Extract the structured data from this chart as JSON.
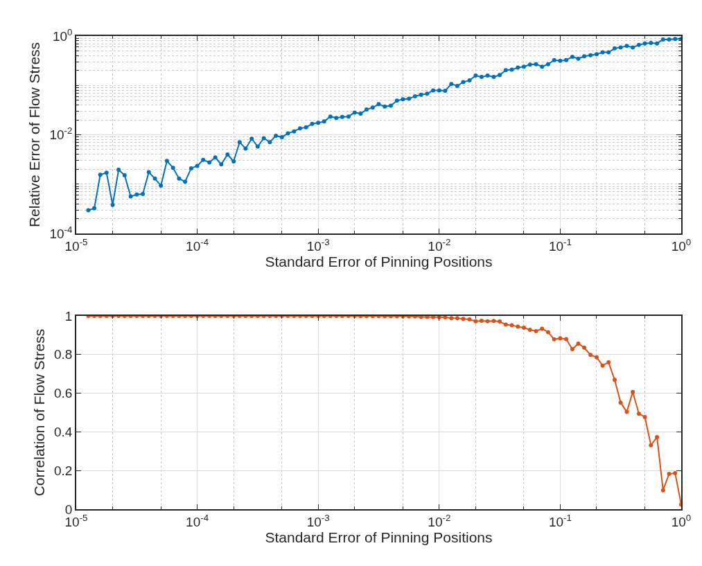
{
  "chart_data": [
    {
      "type": "line",
      "xlabel": "Standard Error of Pinning Positions",
      "ylabel": "Relative Error of Flow Stress",
      "log": "xy",
      "grid": true,
      "marker": "circle",
      "line_style": "solid",
      "xlim": [
        1e-05,
        1
      ],
      "ylim": [
        0.0001,
        1
      ],
      "xticks": [
        {
          "value": 1e-05,
          "label": "10$^{-5}$"
        },
        {
          "value": 0.0001,
          "label": "10$^{-4}$"
        },
        {
          "value": 0.001,
          "label": "10$^{-3}$"
        },
        {
          "value": 0.01,
          "label": "10$^{-2}$"
        },
        {
          "value": 0.1,
          "label": "10$^{-1}$"
        },
        {
          "value": 1,
          "label": "10$^{0}$"
        }
      ],
      "yticks": [
        {
          "value": 0.0001,
          "label": "10$^{-4}$"
        },
        {
          "value": 0.01,
          "label": "10$^{-2}$"
        },
        {
          "value": 1,
          "label": "10$^{0}$"
        }
      ],
      "series": [
        {
          "color": "#0072bd",
          "x": [
            1.26e-05,
            1.41e-05,
            1.58e-05,
            1.78e-05,
            2e-05,
            2.24e-05,
            2.51e-05,
            2.82e-05,
            3.16e-05,
            3.55e-05,
            3.98e-05,
            4.47e-05,
            5.01e-05,
            5.62e-05,
            6.31e-05,
            7.08e-05,
            7.94e-05,
            8.91e-05,
            0.0001,
            0.000112,
            0.000126,
            0.000141,
            0.000158,
            0.000178,
            0.0002,
            0.000224,
            0.000251,
            0.000282,
            0.000316,
            0.000355,
            0.000398,
            0.000447,
            0.000501,
            0.000562,
            0.000631,
            0.000708,
            0.000794,
            0.000891,
            0.001,
            0.00112,
            0.00126,
            0.00141,
            0.00158,
            0.00178,
            0.002,
            0.00224,
            0.00251,
            0.00282,
            0.00316,
            0.00355,
            0.00398,
            0.00447,
            0.00501,
            0.00562,
            0.00631,
            0.00708,
            0.00794,
            0.00891,
            0.01,
            0.0112,
            0.0126,
            0.0141,
            0.0158,
            0.0178,
            0.02,
            0.0224,
            0.0251,
            0.0282,
            0.0316,
            0.0355,
            0.0398,
            0.0447,
            0.0501,
            0.0562,
            0.0631,
            0.0708,
            0.0794,
            0.0891,
            0.1,
            0.112,
            0.126,
            0.141,
            0.158,
            0.178,
            0.2,
            0.224,
            0.251,
            0.282,
            0.316,
            0.355,
            0.398,
            0.447,
            0.501,
            0.562,
            0.631,
            0.708,
            0.794,
            0.891,
            1
          ],
          "values": [
            0.000295,
            0.000324,
            0.00155,
            0.0017,
            0.00038,
            0.00195,
            0.00151,
            0.000562,
            0.000617,
            0.000631,
            0.00174,
            0.00129,
            0.000933,
            0.00295,
            0.00214,
            0.00129,
            0.00112,
            0.00209,
            0.00234,
            0.00309,
            0.00275,
            0.00347,
            0.00251,
            0.00398,
            0.00288,
            0.00708,
            0.00525,
            0.00832,
            0.00575,
            0.00851,
            0.00708,
            0.00955,
            0.00891,
            0.0107,
            0.0117,
            0.0135,
            0.0141,
            0.0166,
            0.0174,
            0.0186,
            0.0234,
            0.0219,
            0.0229,
            0.0234,
            0.0282,
            0.0269,
            0.0324,
            0.0355,
            0.0417,
            0.0372,
            0.0389,
            0.049,
            0.0525,
            0.0537,
            0.0603,
            0.0646,
            0.0676,
            0.0794,
            0.0794,
            0.0776,
            0.107,
            0.0977,
            0.117,
            0.126,
            0.158,
            0.148,
            0.158,
            0.148,
            0.162,
            0.204,
            0.209,
            0.229,
            0.24,
            0.263,
            0.269,
            0.24,
            0.269,
            0.324,
            0.316,
            0.324,
            0.38,
            0.347,
            0.389,
            0.407,
            0.427,
            0.468,
            0.468,
            0.562,
            0.589,
            0.631,
            0.589,
            0.661,
            0.708,
            0.724,
            0.708,
            0.851,
            0.851,
            0.871,
            0.871
          ]
        }
      ]
    },
    {
      "type": "line",
      "xlabel": "Standard Error of Pinning Positions",
      "ylabel": "Correlation of Flow Stress",
      "log": "x",
      "grid": true,
      "marker": "circle",
      "line_style": "solid",
      "xlim": [
        1e-05,
        1
      ],
      "ylim": [
        0,
        1
      ],
      "xticks": [
        {
          "value": 1e-05,
          "label": "10$^{-5}$"
        },
        {
          "value": 0.0001,
          "label": "10$^{-4}$"
        },
        {
          "value": 0.001,
          "label": "10$^{-3}$"
        },
        {
          "value": 0.01,
          "label": "10$^{-2}$"
        },
        {
          "value": 0.1,
          "label": "10$^{-1}$"
        },
        {
          "value": 1,
          "label": "10$^{0}$"
        }
      ],
      "yticks": [
        0,
        0.2,
        0.4,
        0.6,
        0.8,
        1
      ],
      "series": [
        {
          "color": "#d95319",
          "x": [
            1.26e-05,
            1.41e-05,
            1.58e-05,
            1.78e-05,
            2e-05,
            2.24e-05,
            2.51e-05,
            2.82e-05,
            3.16e-05,
            3.55e-05,
            3.98e-05,
            4.47e-05,
            5.01e-05,
            5.62e-05,
            6.31e-05,
            7.08e-05,
            7.94e-05,
            8.91e-05,
            0.0001,
            0.000112,
            0.000126,
            0.000141,
            0.000158,
            0.000178,
            0.0002,
            0.000224,
            0.000251,
            0.000282,
            0.000316,
            0.000355,
            0.000398,
            0.000447,
            0.000501,
            0.000562,
            0.000631,
            0.000708,
            0.000794,
            0.000891,
            0.001,
            0.00112,
            0.00126,
            0.00141,
            0.00158,
            0.00178,
            0.002,
            0.00224,
            0.00251,
            0.00282,
            0.00316,
            0.00355,
            0.00398,
            0.00447,
            0.00501,
            0.00562,
            0.00631,
            0.00708,
            0.00794,
            0.00891,
            0.01,
            0.0112,
            0.0126,
            0.0141,
            0.0158,
            0.0178,
            0.02,
            0.0224,
            0.0251,
            0.0282,
            0.0316,
            0.0355,
            0.0398,
            0.0447,
            0.0501,
            0.0562,
            0.0631,
            0.0708,
            0.0794,
            0.0891,
            0.1,
            0.112,
            0.126,
            0.141,
            0.158,
            0.178,
            0.2,
            0.224,
            0.251,
            0.282,
            0.316,
            0.355,
            0.398,
            0.447,
            0.501,
            0.562,
            0.631,
            0.708,
            0.794,
            0.891,
            1
          ],
          "values": [
            1,
            1,
            1,
            1,
            1,
            1,
            1,
            1,
            1,
            1,
            1,
            1,
            1,
            1,
            1,
            1,
            1,
            1,
            1,
            1,
            1,
            1,
            1,
            1,
            1,
            1,
            1,
            1,
            1,
            1,
            1,
            1,
            1,
            1,
            1,
            1,
            1,
            1,
            1,
            1,
            1,
            1,
            1,
            1,
            1,
            0.999,
            0.999,
            0.999,
            0.999,
            0.998,
            0.998,
            0.998,
            0.998,
            0.997,
            0.997,
            0.995,
            0.995,
            0.994,
            0.994,
            0.993,
            0.988,
            0.988,
            0.985,
            0.982,
            0.972,
            0.975,
            0.972,
            0.974,
            0.971,
            0.955,
            0.952,
            0.944,
            0.939,
            0.928,
            0.921,
            0.934,
            0.916,
            0.879,
            0.884,
            0.88,
            0.828,
            0.857,
            0.836,
            0.798,
            0.786,
            0.743,
            0.76,
            0.669,
            0.551,
            0.504,
            0.607,
            0.494,
            0.477,
            0.331,
            0.373,
            0.098,
            0.183,
            0.186,
            0.024
          ]
        }
      ]
    }
  ]
}
